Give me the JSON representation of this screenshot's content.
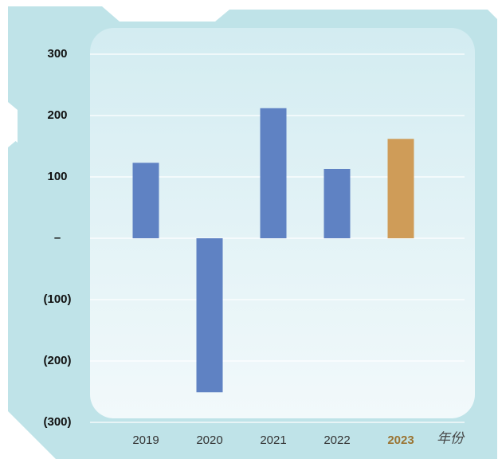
{
  "chart_data": {
    "type": "bar",
    "categories": [
      "2019",
      "2020",
      "2021",
      "2022",
      "2023"
    ],
    "values": [
      123,
      -251,
      212,
      113,
      162
    ],
    "color": "#5f82c3",
    "colors": [
      "#5f82c3",
      "#5f82c3",
      "#5f82c3",
      "#5f82c3",
      "#cf9c58"
    ],
    "x_label": "年份",
    "ylim": [
      -300,
      300
    ],
    "yticks": [
      {
        "value": -300,
        "label": "(300)"
      },
      {
        "value": -200,
        "label": "(200)"
      },
      {
        "value": -100,
        "label": "(100)"
      },
      {
        "value": 0,
        "label": "–"
      },
      100,
      200,
      300
    ],
    "grid": true
  }
}
